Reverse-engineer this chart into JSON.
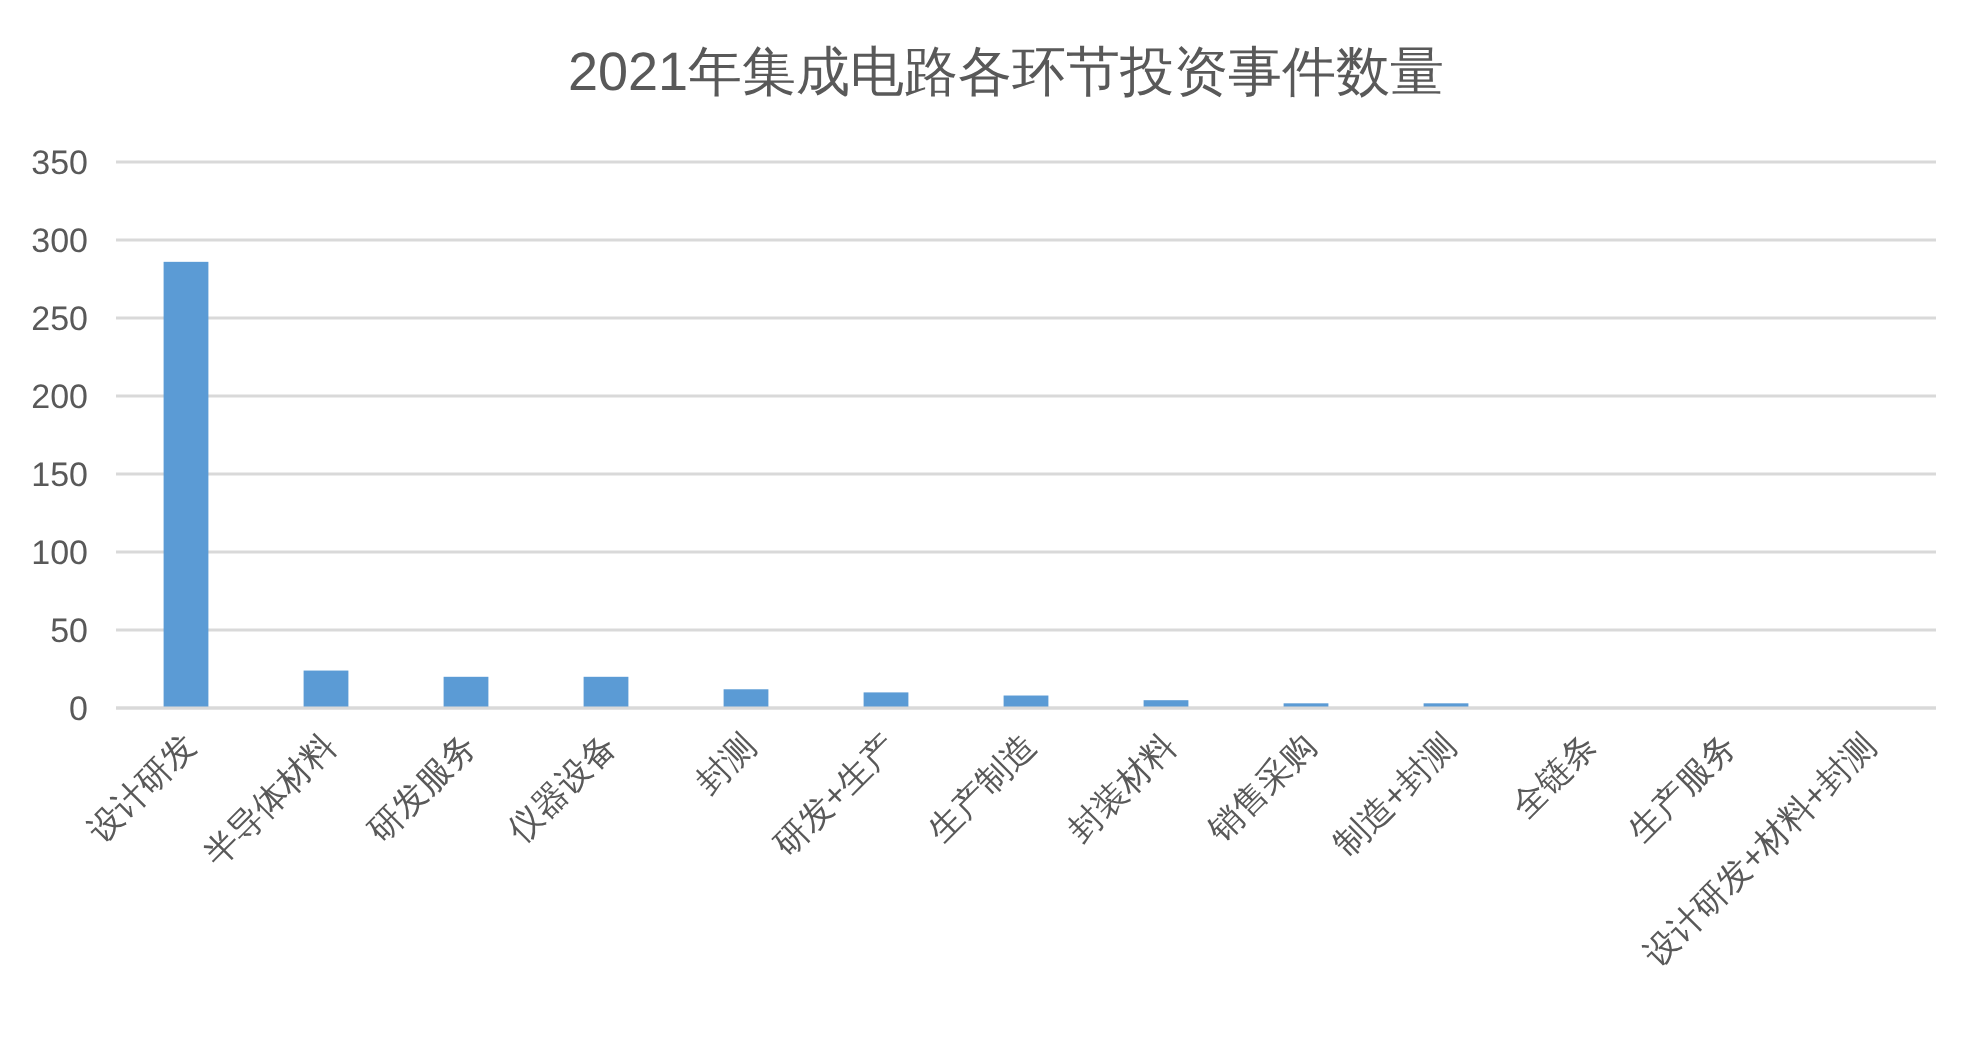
{
  "chart_data": {
    "type": "bar",
    "title": "2021年集成电路各环节投资事件数量",
    "categories": [
      "设计研发",
      "半导体材料",
      "研发服务",
      "仪器设备",
      "封测",
      "研发+生产",
      "生产制造",
      "封装材料",
      "销售采购",
      "制造+封测",
      "全链条",
      "生产服务",
      "设计研发+材料+封测"
    ],
    "values": [
      286,
      24,
      20,
      20,
      12,
      10,
      8,
      5,
      3,
      3,
      0,
      0,
      0
    ],
    "color": "#5b9bd5",
    "ylim": [
      0,
      350
    ],
    "yticks": [
      0,
      50,
      100,
      150,
      200,
      250,
      300,
      350
    ],
    "grid": "y"
  }
}
